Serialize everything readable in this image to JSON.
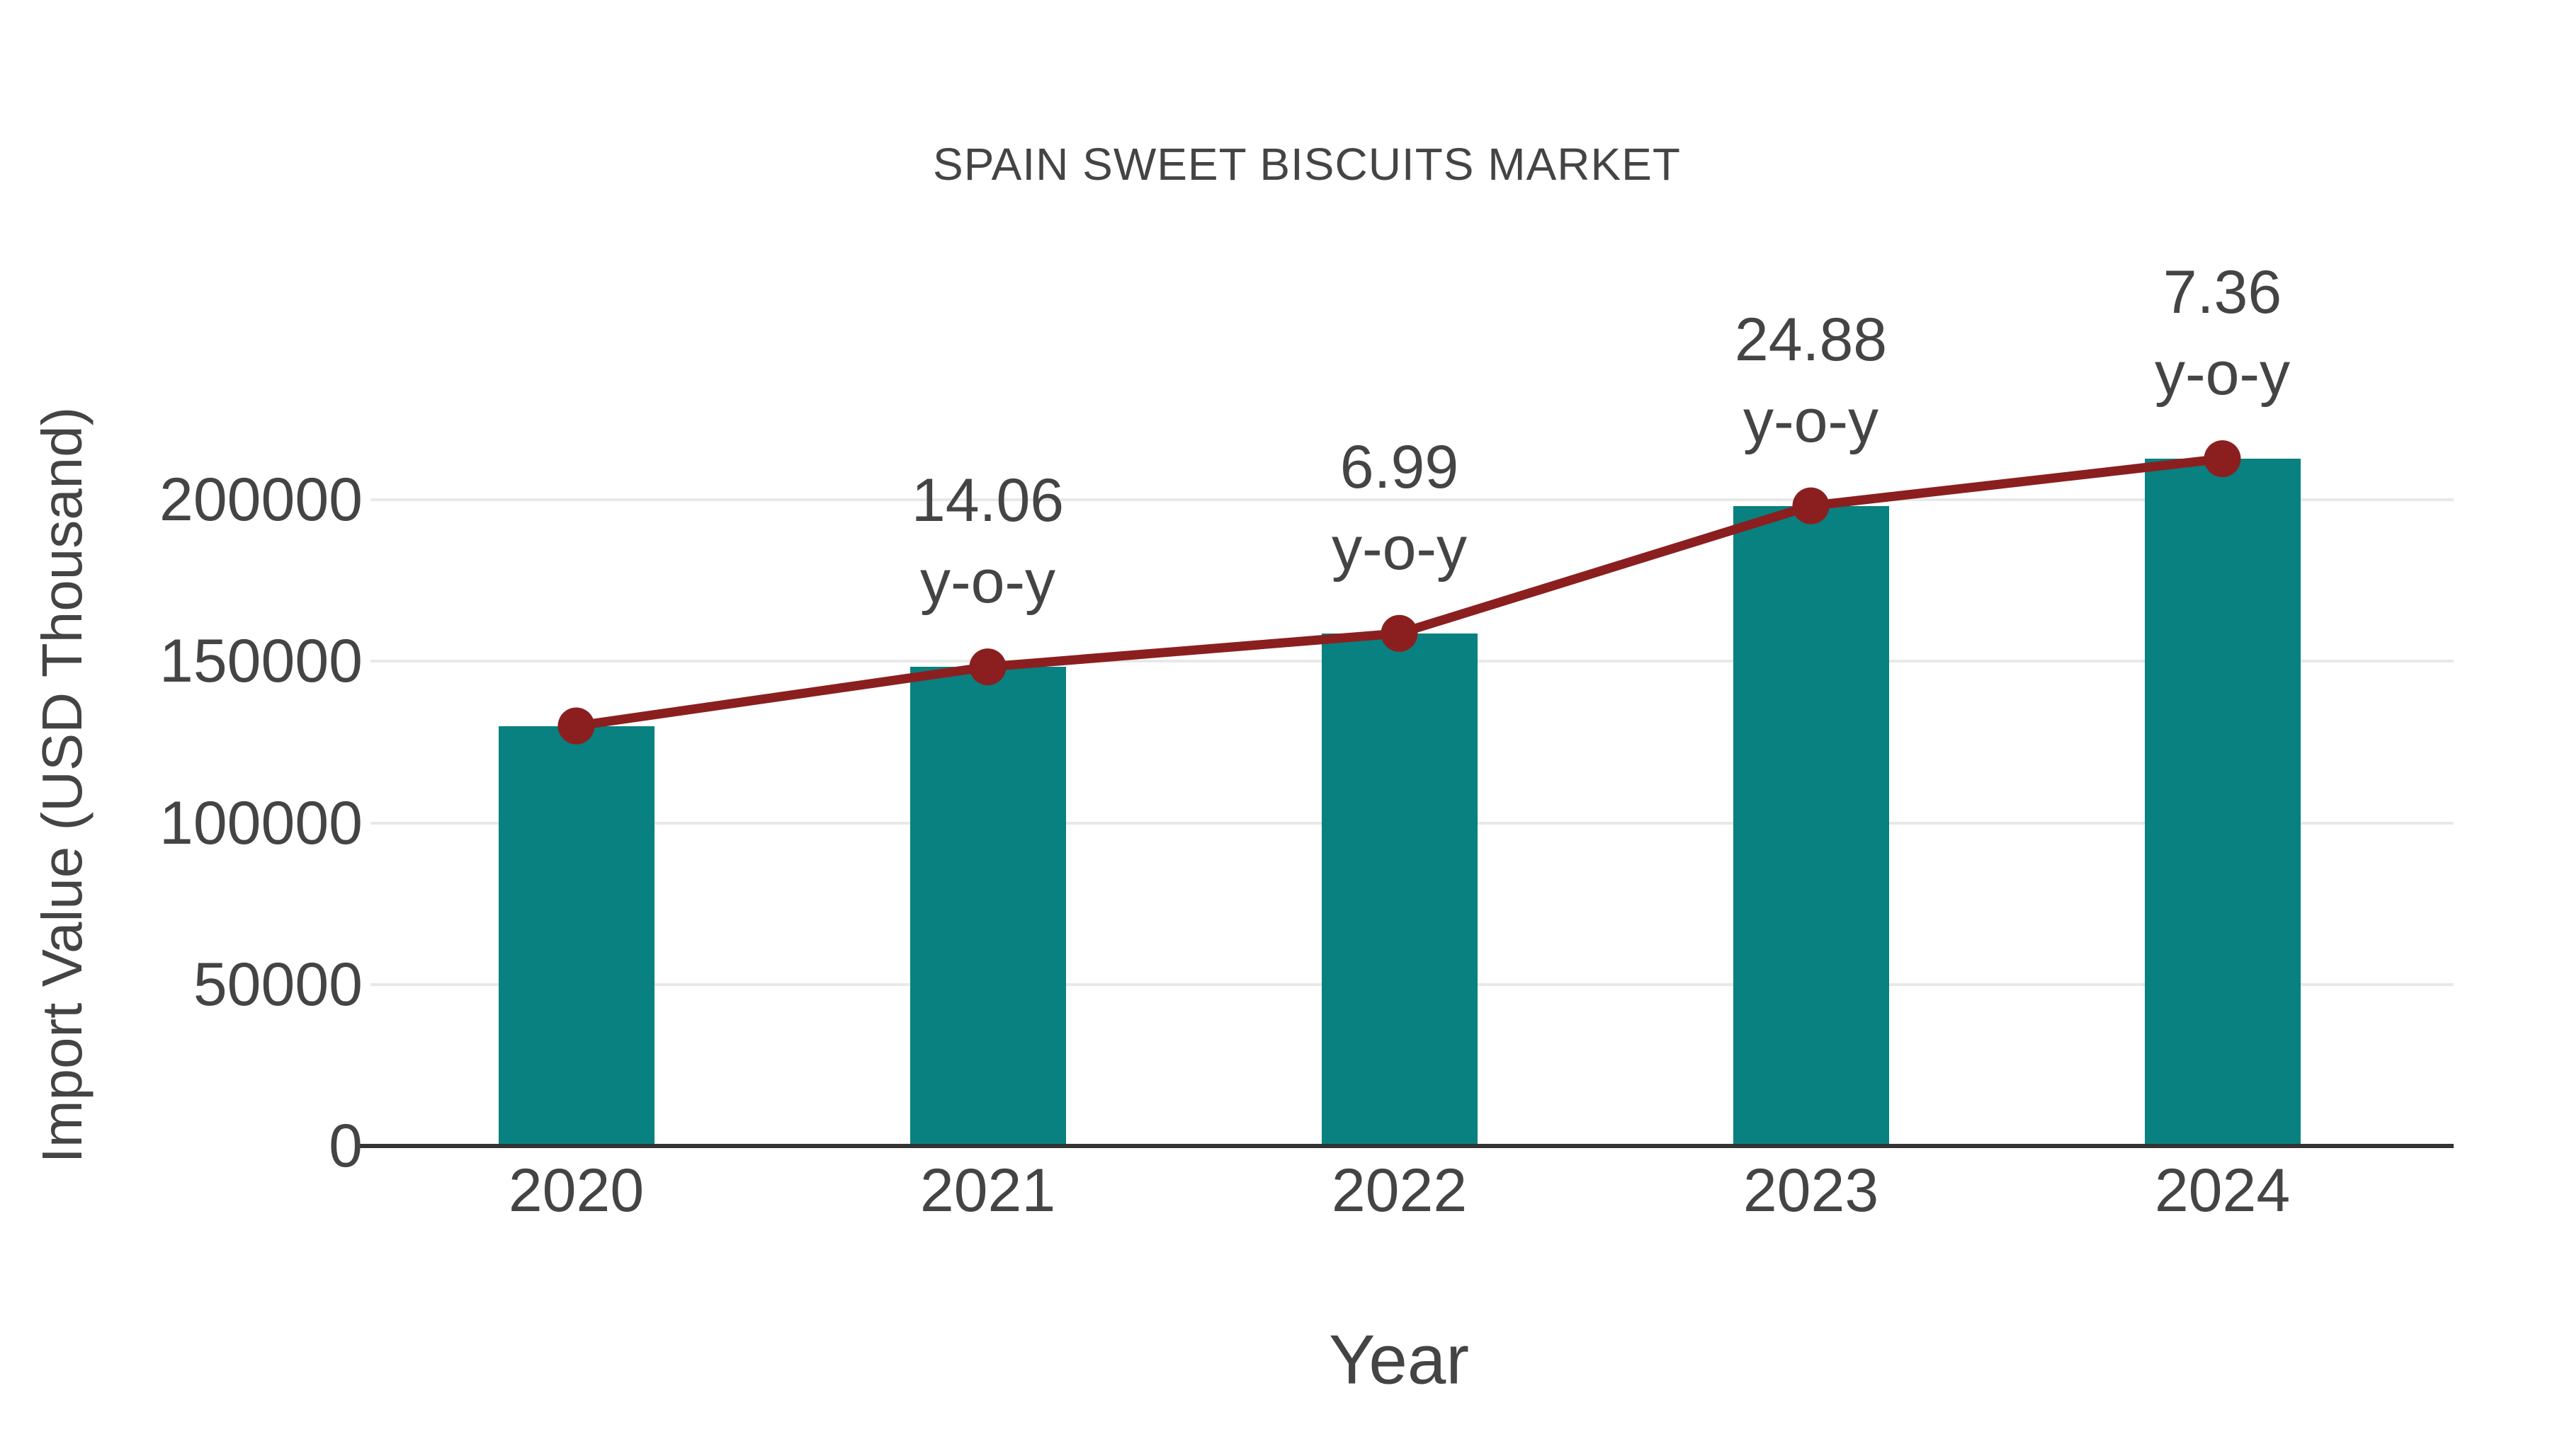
{
  "title": "SPAIN SWEET BISCUITS MARKET",
  "colors": {
    "bar": "#088180",
    "line": "#8B1F1F",
    "text": "#444444",
    "grid": "#E8E8E8",
    "axis": "#333333",
    "background": "#FFFFFF"
  },
  "chart_data": {
    "type": "bar",
    "subtype": "bar-with-line-overlay",
    "title": "SPAIN SWEET BISCUITS MARKET",
    "xlabel": "Year",
    "ylabel": "Import Value (USD Thousand)",
    "categories": [
      "2020",
      "2021",
      "2022",
      "2023",
      "2024"
    ],
    "series": [
      {
        "name": "Import Value (USD Thousand)",
        "type": "bar",
        "values": [
          130000,
          148278,
          158643,
          198113,
          212694
        ]
      },
      {
        "name": "y-o-y trend line",
        "type": "line",
        "values": [
          130000,
          148278,
          158643,
          198113,
          212694
        ]
      }
    ],
    "annotations": [
      {
        "category": "2021",
        "text": "14.06",
        "subtext": "y-o-y"
      },
      {
        "category": "2022",
        "text": "6.99",
        "subtext": "y-o-y"
      },
      {
        "category": "2023",
        "text": "24.88",
        "subtext": "y-o-y"
      },
      {
        "category": "2024",
        "text": "7.36",
        "subtext": "y-o-y"
      }
    ],
    "yticks": [
      0,
      50000,
      100000,
      150000,
      200000
    ],
    "ylim": [
      0,
      225000
    ],
    "grid": true,
    "legend": "none"
  }
}
